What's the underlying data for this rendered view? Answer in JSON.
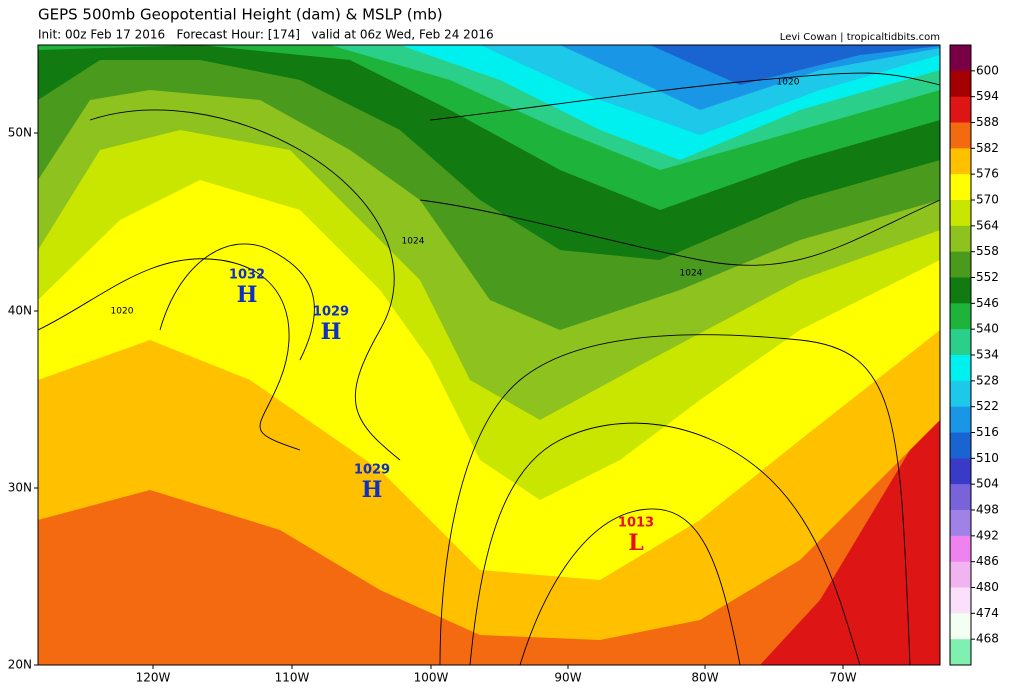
{
  "header": {
    "title": "GEPS 500mb Geopotential Height (dam) & MSLP (mb)",
    "subtitle": "Init: 00z Feb 17 2016   Forecast Hour: [174]   valid at 06z Wed, Feb 24 2016",
    "credit": "Levi Cowan | tropicaltidbits.com"
  },
  "map": {
    "lat_labels": [
      "50N",
      "40N",
      "30N",
      "20N"
    ],
    "lon_labels": [
      "120W",
      "110W",
      "100W",
      "90W",
      "80W",
      "70W"
    ],
    "centers": [
      {
        "value": 1032,
        "symbol": "H"
      },
      {
        "value": 1029,
        "symbol": "H"
      },
      {
        "value": 1029,
        "symbol": "H"
      },
      {
        "value": 1013,
        "symbol": "L"
      }
    ],
    "isobar_labels": [
      1020,
      1024,
      1020,
      1024
    ]
  },
  "colorbar": {
    "levels": [
      600,
      594,
      588,
      582,
      576,
      570,
      564,
      558,
      552,
      546,
      540,
      534,
      528,
      522,
      516,
      510,
      504,
      498,
      492,
      486,
      480,
      474,
      468
    ],
    "colors": [
      "#7a0046",
      "#a50000",
      "#dd1515",
      "#f46a10",
      "#ffc000",
      "#ffff00",
      "#c8e600",
      "#8ec21e",
      "#4a9a1e",
      "#117a11",
      "#1eb43c",
      "#2ad08a",
      "#00f0f0",
      "#1ec8e8",
      "#1a96e6",
      "#1a64d2",
      "#3a3ac8",
      "#7864d8",
      "#a082e6",
      "#ee82ee",
      "#f0b4f0",
      "#fae0fa",
      "#f4fff4",
      "#80f0b0"
    ]
  }
}
